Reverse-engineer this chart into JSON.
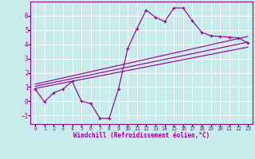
{
  "xlabel": "Windchill (Refroidissement éolien,°C)",
  "bg_color": "#c8ecec",
  "line_color": "#990099",
  "grid_color": "#ffffff",
  "xlim": [
    -0.5,
    23.5
  ],
  "ylim": [
    -1.6,
    7.0
  ],
  "xticks": [
    0,
    1,
    2,
    3,
    4,
    5,
    6,
    7,
    8,
    9,
    10,
    11,
    12,
    13,
    14,
    15,
    16,
    17,
    18,
    19,
    20,
    21,
    22,
    23
  ],
  "yticks": [
    -1,
    0,
    1,
    2,
    3,
    4,
    5,
    6
  ],
  "main_line_x": [
    0,
    1,
    2,
    3,
    4,
    5,
    6,
    7,
    8,
    9,
    10,
    11,
    12,
    13,
    14,
    15,
    16,
    17,
    18,
    19,
    20,
    21,
    22,
    23
  ],
  "main_line_y": [
    0.85,
    -0.05,
    0.6,
    0.85,
    1.4,
    0.0,
    -0.15,
    -1.2,
    -1.2,
    0.85,
    3.7,
    5.1,
    6.4,
    5.9,
    5.6,
    6.55,
    6.55,
    5.65,
    4.85,
    4.6,
    4.55,
    4.5,
    4.45,
    4.1
  ],
  "reg_line1_x": [
    0,
    23
  ],
  "reg_line1_y": [
    1.05,
    4.15
  ],
  "reg_line2_x": [
    0,
    23
  ],
  "reg_line2_y": [
    0.9,
    3.8
  ],
  "reg_line3_x": [
    0,
    23
  ],
  "reg_line3_y": [
    1.2,
    4.55
  ]
}
